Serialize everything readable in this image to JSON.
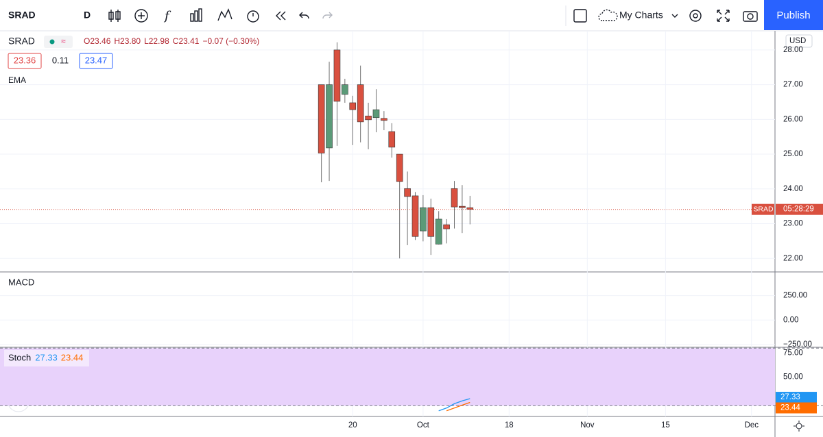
{
  "toolbar": {
    "symbol": "SRAD",
    "interval": "D",
    "my_charts": "My Charts",
    "publish": "Publish"
  },
  "legend": {
    "symbol": "SRAD",
    "ohlc": [
      "O23.46",
      "H23.80",
      "L22.98",
      "C23.41",
      "−0.07 (−0.30%)"
    ],
    "ema": {
      "name": "EMA",
      "values": [
        "23.36",
        "0.11",
        "23.47"
      ]
    }
  },
  "currency": "USD",
  "chart_data": [
    {
      "type": "candlestick",
      "open": [
        27.0,
        25.18,
        28.0,
        26.72,
        26.48,
        27.0,
        26.1,
        26.05,
        26.03,
        25.65,
        25.0,
        24.01,
        23.8,
        22.79,
        23.46,
        22.41,
        22.97,
        24.01,
        23.5,
        23.46
      ],
      "high": [
        27.0,
        27.66,
        28.22,
        27.17,
        26.68,
        27.55,
        26.48,
        26.87,
        26.24,
        25.89,
        25.0,
        24.5,
        23.91,
        23.82,
        23.72,
        23.36,
        23.13,
        24.23,
        24.11,
        23.8
      ],
      "low": [
        24.19,
        24.23,
        25.24,
        26.48,
        25.26,
        25.34,
        25.14,
        25.63,
        25.69,
        24.9,
        22.0,
        22.38,
        22.53,
        22.49,
        22.1,
        22.4,
        22.43,
        22.86,
        22.73,
        22.98
      ],
      "close": [
        25.03,
        27.0,
        26.52,
        27.0,
        26.28,
        25.93,
        25.99,
        26.28,
        25.97,
        25.2,
        24.21,
        23.78,
        22.63,
        23.46,
        22.63,
        23.13,
        22.85,
        23.48,
        23.46,
        23.41
      ],
      "up_color": "#5b9a78",
      "down_color": "#d9503f",
      "xlim": [
        -41.1,
        58.0
      ],
      "xticks": [
        {
          "value": 4,
          "label": "20"
        },
        {
          "value": 13,
          "label": "Oct"
        },
        {
          "value": 24,
          "label": "18"
        },
        {
          "value": 34,
          "label": "Nov"
        },
        {
          "value": 44,
          "label": "15"
        },
        {
          "value": 55,
          "label": "Dec"
        }
      ],
      "ylim": [
        21.61,
        28.55
      ],
      "yticks": [
        {
          "value": 22,
          "label": "22.00"
        },
        {
          "value": 23,
          "label": "23.00"
        },
        {
          "value": 24,
          "label": "24.00"
        },
        {
          "value": 25,
          "label": "25.00"
        },
        {
          "value": 26,
          "label": "26.00"
        },
        {
          "value": 27,
          "label": "27.00"
        },
        {
          "value": 28,
          "label": "28.00"
        }
      ],
      "last_price_label": {
        "symbol": "SRAD",
        "countdown": "05:28:29"
      }
    },
    {
      "type": "line",
      "title": "MACD",
      "ylim": [
        -279,
        493
      ],
      "yticks": [
        {
          "value": -250,
          "label": "−250.00"
        },
        {
          "value": 0,
          "label": "0.00"
        },
        {
          "value": 250,
          "label": "250.00"
        }
      ]
    },
    {
      "type": "line",
      "title": "Stoch",
      "ylim": [
        8.8,
        80.9
      ],
      "bands": [
        20,
        80
      ],
      "yticks": [
        {
          "value": 50,
          "label": "50.00"
        },
        {
          "value": 75,
          "label": "75.00"
        }
      ],
      "series": [
        {
          "color": "#2196f3",
          "values": [
            null,
            null,
            null,
            null,
            null,
            null,
            null,
            null,
            null,
            null,
            null,
            null,
            null,
            null,
            null,
            14.7,
            17.6,
            22.1,
            25.0,
            27.33
          ],
          "value_labels": [
            null,
            null,
            null,
            null,
            null,
            null,
            null,
            null,
            null,
            null,
            null,
            null,
            null,
            null,
            null,
            null,
            null,
            null,
            null,
            "27.33"
          ]
        },
        {
          "color": "#ff6d00",
          "values": [
            null,
            null,
            null,
            null,
            null,
            null,
            null,
            null,
            null,
            null,
            null,
            null,
            null,
            null,
            null,
            null,
            14.7,
            17.6,
            20.6,
            23.44
          ],
          "value_labels": [
            null,
            null,
            null,
            null,
            null,
            null,
            null,
            null,
            null,
            null,
            null,
            null,
            null,
            null,
            null,
            null,
            null,
            null,
            null,
            "23.44"
          ]
        }
      ]
    }
  ]
}
